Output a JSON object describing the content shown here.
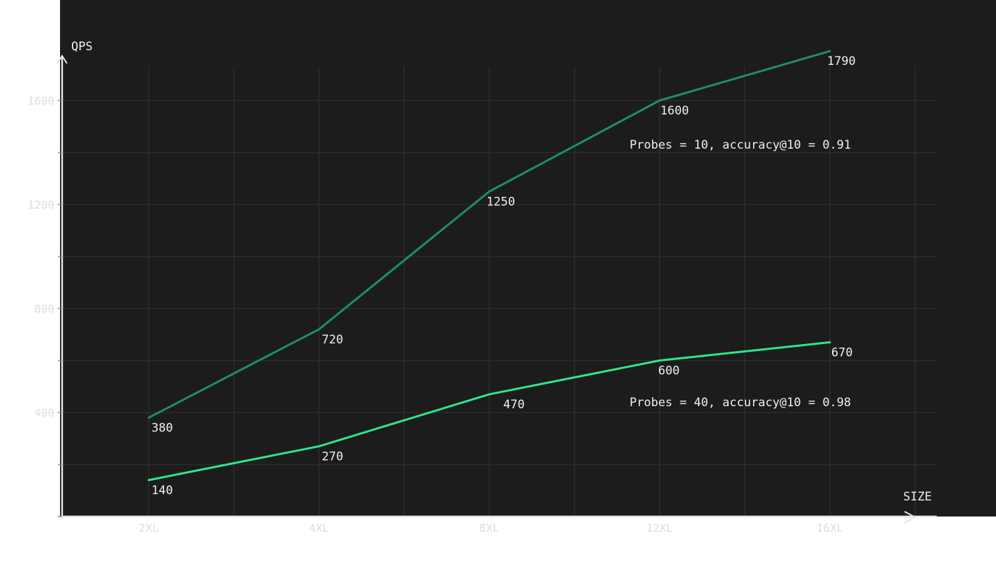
{
  "chart_data": {
    "type": "line",
    "xlabel": "SIZE",
    "ylabel": "QPS",
    "categories": [
      "2XL",
      "4XL",
      "8XL",
      "12XL",
      "16XL"
    ],
    "ylim": [
      0,
      1800
    ],
    "yticks": [
      400,
      800,
      1200,
      1600
    ],
    "grid": true,
    "series": [
      {
        "name": "Probes = 10, accuracy@10 = 0.91",
        "color": "#1e8f62",
        "values": [
          380,
          720,
          1250,
          1600,
          1790
        ]
      },
      {
        "name": "Probes = 40, accuracy@10 = 0.98",
        "color": "#2ee58e",
        "values": [
          140,
          270,
          470,
          600,
          670
        ]
      }
    ]
  },
  "colors": {
    "plot_background": "#1c1c1c",
    "page_background": "#ffffff",
    "axis": "#e6e6e6",
    "grid": "#2c2c2c"
  }
}
